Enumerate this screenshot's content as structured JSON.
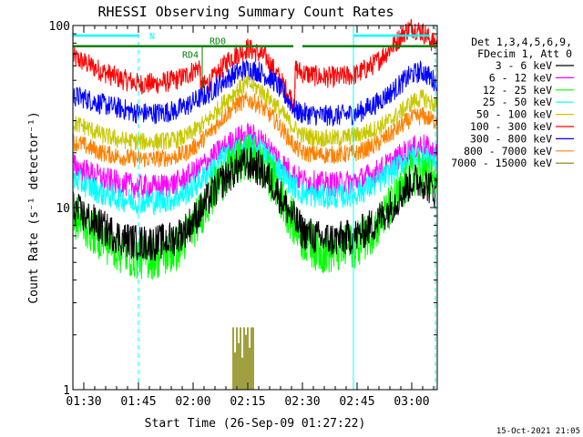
{
  "chart_data": {
    "type": "line",
    "title": "RHESSI Observing Summary Count Rates",
    "xlabel": "Start Time (26-Sep-09 01:27:22)",
    "ylabel": "Count Rate (s⁻¹ detector⁻¹)",
    "yscale": "log",
    "ylim": [
      1,
      100
    ],
    "xlim_minutes": [
      -3,
      97
    ],
    "x_ticks": [
      {
        "minute": 0,
        "label": "01:30"
      },
      {
        "minute": 15,
        "label": "01:45"
      },
      {
        "minute": 30,
        "label": "02:00"
      },
      {
        "minute": 45,
        "label": "02:15"
      },
      {
        "minute": 60,
        "label": "02:30"
      },
      {
        "minute": 75,
        "label": "02:45"
      },
      {
        "minute": 90,
        "label": "03:00"
      }
    ],
    "y_ticks": [
      {
        "value": 1,
        "label": "1"
      },
      {
        "value": 10,
        "label": "10"
      },
      {
        "value": 100,
        "label": "100"
      }
    ],
    "legend": {
      "position": "right",
      "header": [
        "Det 1,3,4,5,6,9,",
        "FDecim 1, Att 0"
      ],
      "entries": [
        {
          "label": "3 - 6 keV",
          "color": "#000000"
        },
        {
          "label": "6 - 12 keV",
          "color": "#ff00ff"
        },
        {
          "label": "12 - 25 keV",
          "color": "#00ff00"
        },
        {
          "label": "25 - 50 keV",
          "color": "#00ffff"
        },
        {
          "label": "50 - 100 keV",
          "color": "#c8c800"
        },
        {
          "label": "100 - 300 keV",
          "color": "#ff0000"
        },
        {
          "label": "300 - 800 keV",
          "color": "#0000ff"
        },
        {
          "label": "800 - 7000 keV",
          "color": "#ff8000"
        },
        {
          "label": "7000 - 15000 keV",
          "color": "#808000"
        }
      ]
    },
    "series": [
      {
        "color": "#ff0000",
        "noise": 0.06,
        "x": [
          -3,
          0,
          5,
          10,
          15,
          20,
          25,
          28,
          31.9,
          32,
          36,
          40,
          45,
          50,
          54,
          57.9,
          58,
          60,
          65,
          70,
          75,
          80,
          85,
          88,
          90,
          93,
          96
        ],
        "y": [
          67,
          63,
          56,
          51,
          48,
          48,
          50,
          53,
          60,
          45,
          52,
          66,
          75,
          67,
          50,
          37,
          58,
          55,
          52,
          52,
          54,
          62,
          78,
          92,
          98,
          92,
          80
        ]
      },
      {
        "color": "#0000ff",
        "noise": 0.06,
        "x": [
          -3,
          0,
          5,
          10,
          15,
          20,
          25,
          28,
          31,
          34,
          38,
          42,
          45,
          48,
          52,
          55,
          57,
          58,
          60,
          65,
          70,
          75,
          80,
          85,
          88,
          90,
          93,
          96
        ],
        "y": [
          41,
          40,
          37,
          35,
          33,
          33,
          34,
          36,
          39,
          42,
          49,
          55,
          58,
          56,
          50,
          42,
          37,
          34,
          33,
          32,
          32,
          33,
          37,
          44,
          50,
          54,
          56,
          50
        ]
      },
      {
        "color": "#ff8000",
        "noise": 0.05,
        "x": [
          -3,
          0,
          5,
          10,
          15,
          20,
          25,
          28,
          31,
          34,
          38,
          42,
          45,
          48,
          52,
          55,
          58,
          60,
          65,
          70,
          75,
          80,
          85,
          88,
          90,
          93,
          96
        ],
        "y": [
          23,
          22,
          20,
          19,
          18.5,
          18.5,
          19,
          20,
          22,
          25,
          31,
          37,
          39,
          37,
          31,
          26,
          21.5,
          20,
          19.5,
          19.5,
          20,
          22,
          26,
          29,
          31,
          32,
          30
        ]
      },
      {
        "color": "#c8c800",
        "noise": 0.05,
        "x": [
          -3,
          0,
          5,
          10,
          15,
          20,
          25,
          28,
          31,
          34,
          38,
          42,
          45,
          48,
          52,
          55,
          58,
          60,
          65,
          70,
          75,
          80,
          85,
          88,
          90,
          93,
          96
        ],
        "y": [
          29,
          28,
          25,
          23.5,
          23,
          23,
          23.5,
          24.5,
          27,
          30,
          37,
          44,
          48,
          45,
          38,
          32,
          27,
          25,
          24,
          24,
          25,
          27,
          31,
          35,
          38,
          40,
          37
        ]
      },
      {
        "color": "#ff00ff",
        "noise": 0.07,
        "x": [
          -3,
          0,
          5,
          10,
          15,
          20,
          25,
          28,
          31,
          34,
          38,
          42,
          45,
          48,
          52,
          55,
          58,
          60,
          65,
          70,
          75,
          80,
          85,
          88,
          90,
          93,
          96
        ],
        "y": [
          17,
          16,
          14.5,
          13.5,
          13,
          13,
          13.5,
          14.5,
          16,
          18,
          21,
          24,
          25,
          24,
          20,
          17,
          15,
          14,
          13.5,
          13.5,
          14,
          15.5,
          18,
          20,
          21,
          22,
          20
        ]
      },
      {
        "color": "#00ffff",
        "noise": 0.07,
        "x": [
          -3,
          0,
          5,
          10,
          15,
          20,
          25,
          28,
          31,
          34,
          38,
          42,
          45,
          48,
          52,
          55,
          58,
          60,
          65,
          70,
          75,
          80,
          85,
          88,
          90,
          93,
          96
        ],
        "y": [
          14.5,
          13.5,
          12,
          11.2,
          10.8,
          10.8,
          11.2,
          12,
          13.5,
          15.5,
          18.5,
          21,
          22,
          21,
          18,
          15,
          13,
          12,
          11.5,
          11.5,
          12,
          13.5,
          16,
          18,
          19,
          19.5,
          18
        ]
      },
      {
        "color": "#00ff00",
        "noise": 0.13,
        "x": [
          -3,
          0,
          5,
          10,
          15,
          20,
          25,
          28,
          31,
          34,
          38,
          42,
          45,
          48,
          52,
          55,
          58,
          60,
          65,
          70,
          75,
          80,
          85,
          88,
          90,
          93,
          96
        ],
        "y": [
          9,
          8.2,
          6.8,
          5.8,
          5.4,
          5.4,
          5.8,
          6.8,
          8.5,
          11,
          14.5,
          17.5,
          19,
          17.5,
          14,
          10.5,
          8,
          6.8,
          5.8,
          5.8,
          6.3,
          7.8,
          10.5,
          13,
          15,
          15.5,
          14
        ]
      },
      {
        "color": "#000000",
        "noise": 0.1,
        "x": [
          -3,
          0,
          5,
          10,
          15,
          20,
          25,
          28,
          31,
          34,
          38,
          42,
          45,
          48,
          52,
          55,
          58,
          60,
          65,
          70,
          75,
          80,
          85,
          88,
          90,
          93,
          96
        ],
        "y": [
          10,
          9,
          7.8,
          6.8,
          6.4,
          6.4,
          6.8,
          7.6,
          9,
          11,
          14,
          16.5,
          17.5,
          16.5,
          13.5,
          10.5,
          8.5,
          7.4,
          6.7,
          6.7,
          7,
          8.2,
          10.5,
          12.5,
          14,
          14,
          12.5
        ]
      }
    ],
    "spikes_7000_15000": {
      "color": "#808000",
      "x": [
        41,
        41.5,
        42,
        42.5,
        43,
        43.5,
        44,
        44.5,
        45,
        45.5,
        46,
        46.5
      ],
      "y": [
        2.2,
        1.6,
        2.2,
        1.8,
        2.2,
        1.5,
        2.2,
        2.0,
        2.2,
        1.7,
        2.2,
        2.2
      ]
    },
    "night_marks": {
      "color": "#00ffff",
      "solid": [
        -3,
        74
      ],
      "dashed": [
        15,
        96.5
      ]
    },
    "flags": {
      "N": {
        "label": "N",
        "color": "#00ffff",
        "y": 88,
        "spans": [
          [
            -3,
            15
          ],
          [
            74,
            95
          ]
        ]
      },
      "RD0": {
        "label": "RD0",
        "color": "#008000",
        "y": 77,
        "spans": [
          [
            -3,
            57.5
          ],
          [
            60,
            97
          ]
        ]
      },
      "RD4": {
        "label": "RD4",
        "color": "#008000",
        "x_minute": 32.5
      }
    },
    "saa_jumps": {
      "color": "#ff0000",
      "x_minutes": [
        32,
        58
      ]
    }
  },
  "footer_timestamp": "15-Oct-2021 21:05"
}
